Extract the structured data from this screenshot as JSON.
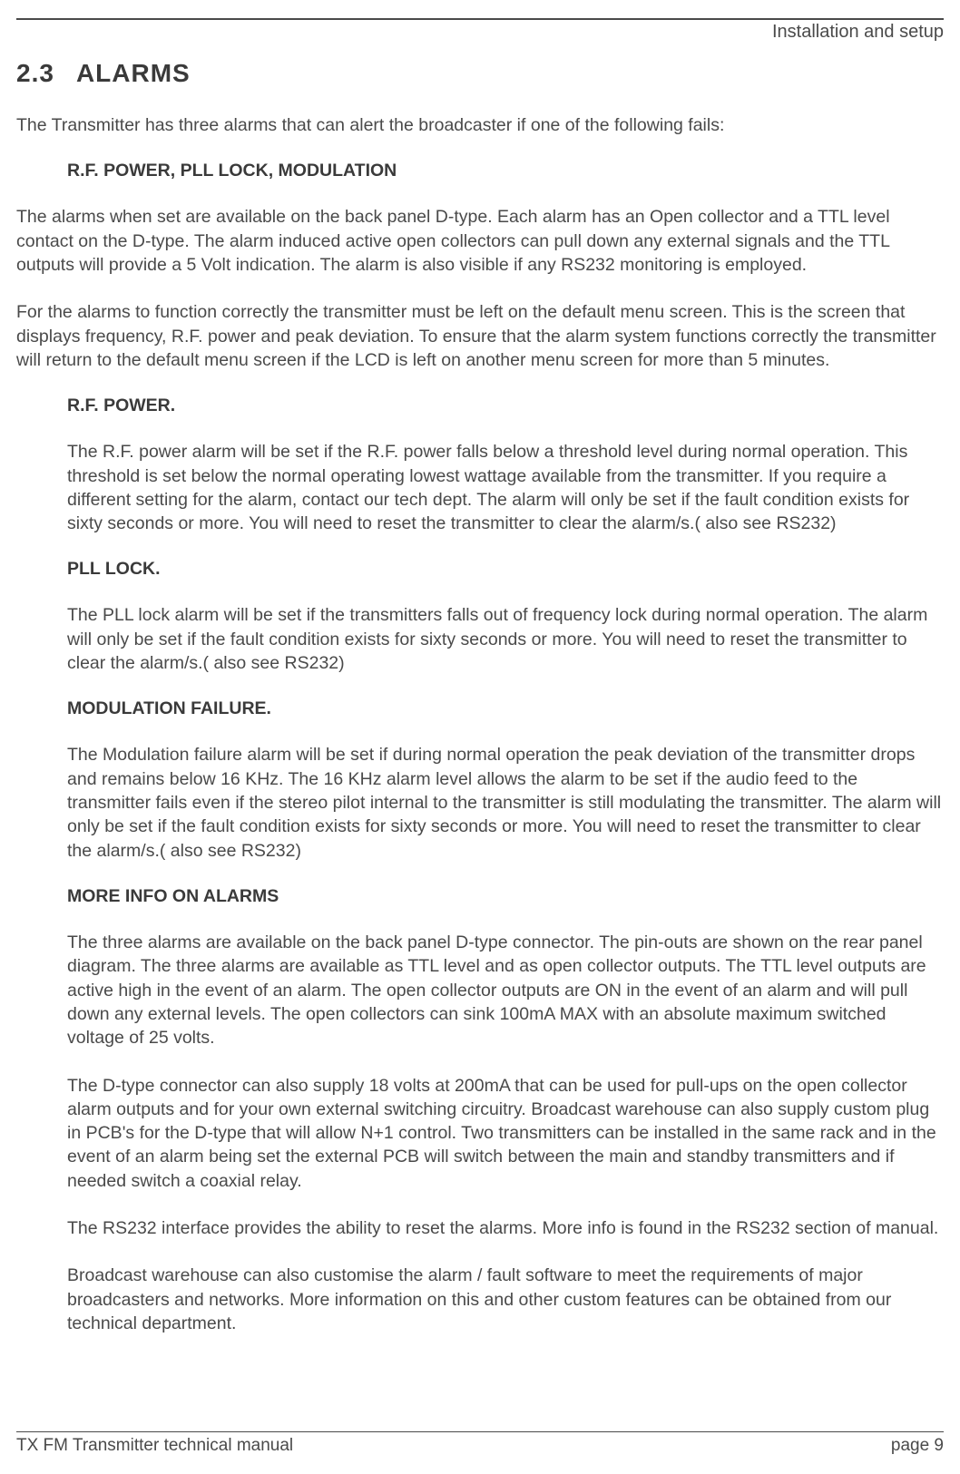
{
  "header": {
    "breadcrumb": "Installation and setup"
  },
  "section": {
    "number": "2.3",
    "title": "ALARMS"
  },
  "intro": {
    "p1": "The Transmitter has three alarms that can alert the broadcaster if one of the following fails:",
    "alarm_types": "R.F. POWER, PLL LOCK, MODULATION",
    "p2": "The alarms when set are available on the back panel D-type. Each alarm has an Open collector  and a TTL level contact on the D-type. The alarm induced active open collectors can pull down any external signals and the TTL outputs will provide a 5 Volt indication. The alarm is also visible if any RS232 monitoring is employed.",
    "p3": "For the alarms to function correctly the transmitter must be left on the default menu screen. This is the screen that displays frequency, R.F. power and peak deviation. To ensure that the alarm system functions correctly the transmitter will return to the default menu screen if the LCD is left on another menu screen for more than 5 minutes."
  },
  "rf_power": {
    "heading": "R.F. POWER.",
    "body": "The R.F. power alarm will be set if the R.F. power falls below a threshold level during normal operation. This threshold is set below the normal operating lowest wattage available from the transmitter. If you require a different setting for the alarm, contact our tech dept. The alarm will only be set if the fault condition exists for sixty seconds or more. You will need to reset the transmitter to clear the alarm/s.( also see RS232)"
  },
  "pll_lock": {
    "heading": "PLL LOCK.",
    "body": "The PLL lock alarm will be set if the transmitters falls out of frequency lock during normal operation. The alarm will only be set if the fault condition exists for sixty seconds or more. You will need to reset the transmitter to clear the alarm/s.( also see RS232)"
  },
  "modulation": {
    "heading": "MODULATION FAILURE.",
    "body": "The Modulation failure alarm will be set if during normal operation the peak deviation of the transmitter drops and remains below 16 KHz. The 16 KHz alarm level allows  the alarm to be set if the audio feed to the transmitter fails even if the stereo pilot internal to the transmitter is still modulating the transmitter. The alarm will only be set if the fault condition exists for sixty seconds or more. You will need to reset the transmitter to clear the alarm/s.( also see RS232)"
  },
  "more_info": {
    "heading": "MORE INFO ON ALARMS",
    "p1": "The three alarms are available on the back panel D-type connector. The pin-outs are shown on the rear panel diagram. The three alarms are available as TTL level and as open collector outputs. The TTL level outputs are  active high in the event of an alarm. The open collector outputs are ON in the event of an alarm and will pull down any external levels. The open collectors can sink 100mA MAX with an absolute maximum switched voltage of 25 volts.",
    "p2": "The D-type connector can also supply 18 volts at 200mA that can be used for pull-ups on the open collector alarm outputs and for your own external switching circuitry. Broadcast warehouse can also supply custom plug in PCB's for the D-type that will allow N+1 control. Two transmitters can be installed in the same rack and in the event of an alarm being set  the external PCB will switch between the main and standby transmitters and if needed switch a coaxial relay.",
    "p3": "The RS232 interface provides the ability to reset the alarms. More info is found in the RS232 section of manual.",
    "p4": "Broadcast warehouse can also customise the alarm / fault software to meet the requirements of major broadcasters and networks. More information on this and other custom features can be obtained from our technical department."
  },
  "footer": {
    "left": "TX FM Transmitter technical manual",
    "right": "page 9"
  }
}
